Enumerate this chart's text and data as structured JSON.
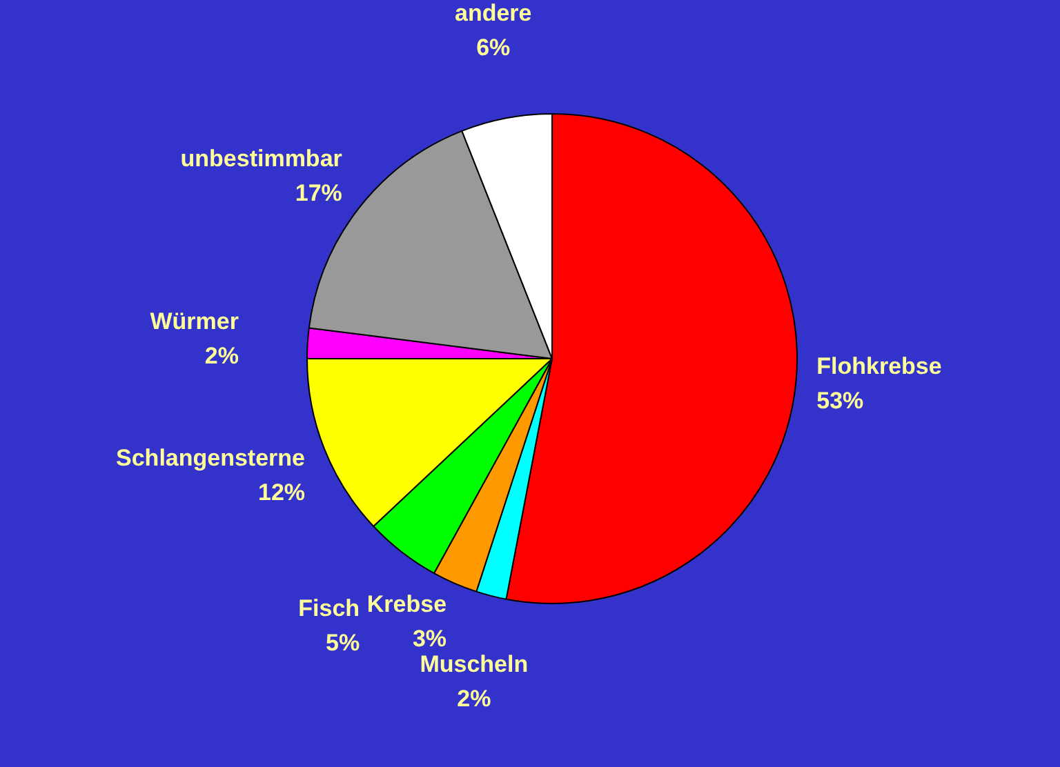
{
  "chart_data": {
    "type": "pie",
    "categories": [
      "Flohkrebse",
      "Muscheln",
      "Krebse",
      "Fisch",
      "Schlangensterne",
      "Würmer",
      "unbestimmbar",
      "andere"
    ],
    "values": [
      53,
      2,
      3,
      5,
      12,
      2,
      17,
      6
    ],
    "colors": [
      "#ff0000",
      "#00ffff",
      "#ff9900",
      "#00ff00",
      "#ffff00",
      "#ff00ff",
      "#999999",
      "#ffffff"
    ],
    "value_labels": [
      "53%",
      "2%",
      "3%",
      "5%",
      "12%",
      "2%",
      "17%",
      "6%"
    ],
    "legend": false
  }
}
